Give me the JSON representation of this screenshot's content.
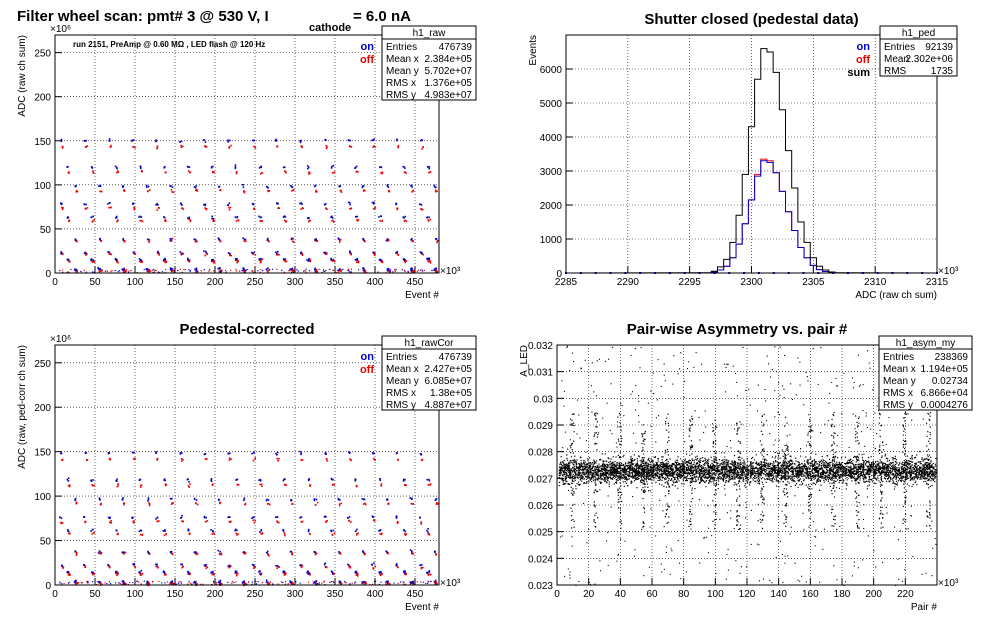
{
  "figure_title": {
    "prefix": "Filter wheel scan: pmt#   3 @   530 V, I",
    "subscript": "cathode",
    "suffix": "= 6.0 nA"
  },
  "chart_data": [
    {
      "id": "raw",
      "type": "scatter",
      "title": "",
      "xlabel": "Event #",
      "ylabel": "ADC (raw ch sum)",
      "xlim": [
        0,
        480
      ],
      "ylim": [
        0,
        270
      ],
      "x_exponent": "×10³",
      "y_exponent": "×10⁶",
      "xticks": [
        0,
        50,
        100,
        150,
        200,
        250,
        300,
        350,
        400,
        450
      ],
      "yticks": [
        0,
        50,
        100,
        150,
        200,
        250
      ],
      "grid": true,
      "annotation": "run 2151, PreAmp @ 0.60 MΩ , LED flash @  120 Hz",
      "legend": [
        {
          "label": "on",
          "color": "#0000cc"
        },
        {
          "label": "off",
          "color": "#ee0000"
        }
      ],
      "legend_position": "top-right",
      "stats": {
        "name": "h1_raw",
        "rows": [
          {
            "label": "Entries",
            "value": "476739"
          },
          {
            "label": "Mean x",
            "value": "2.384e+05"
          },
          {
            "label": "Mean y",
            "value": "5.702e+07"
          },
          {
            "label": "RMS x",
            "value": "1.376e+05"
          },
          {
            "label": "RMS y",
            "value": "4.983e+07"
          }
        ]
      },
      "bands": [
        {
          "on": 150,
          "off": 143
        },
        {
          "on": 120,
          "off": 114
        },
        {
          "on": 98,
          "off": 93
        },
        {
          "on": 78,
          "off": 73
        },
        {
          "on": 63,
          "off": 59
        },
        {
          "on": 38,
          "off": 36
        },
        {
          "on": 23,
          "off": 21
        },
        {
          "on": 15,
          "off": 13
        },
        {
          "on": 4,
          "off": 2
        }
      ],
      "scan_period": 30
    },
    {
      "id": "ped",
      "type": "line",
      "title": "Shutter closed (pedestal data)",
      "xlabel": "ADC (raw ch sum)",
      "ylabel": "Events",
      "xlim": [
        2285,
        2315
      ],
      "ylim": [
        0,
        7000
      ],
      "x_exponent": "×10³",
      "xticks": [
        2285,
        2290,
        2295,
        2300,
        2305,
        2310,
        2315
      ],
      "yticks": [
        0,
        1000,
        2000,
        3000,
        4000,
        5000,
        6000
      ],
      "grid": true,
      "legend": [
        {
          "label": "on",
          "color": "#0000cc"
        },
        {
          "label": "off",
          "color": "#ee0000"
        },
        {
          "label": "sum",
          "color": "#000000"
        }
      ],
      "legend_position": "top-right",
      "stats": {
        "name": "h1_ped",
        "rows": [
          {
            "label": "Entries",
            "value": "92139"
          },
          {
            "label": "Mean",
            "value": "2.302e+06"
          },
          {
            "label": "RMS",
            "value": "1735"
          }
        ]
      },
      "x": [
        2296.5,
        2297,
        2297.5,
        2298,
        2298.5,
        2299,
        2299.5,
        2300,
        2300.5,
        2301,
        2301.5,
        2302,
        2302.5,
        2303,
        2303.5,
        2304,
        2304.5,
        2305,
        2305.5,
        2306,
        2306.5,
        2307
      ],
      "series": [
        {
          "name": "sum",
          "values": [
            5,
            50,
            180,
            400,
            900,
            1700,
            2900,
            4300,
            5700,
            6600,
            6500,
            5900,
            4800,
            3600,
            2500,
            1500,
            900,
            450,
            200,
            90,
            30,
            5
          ]
        },
        {
          "name": "on",
          "values": [
            2,
            25,
            90,
            200,
            450,
            850,
            1450,
            2150,
            2850,
            3300,
            3250,
            2950,
            2400,
            1800,
            1250,
            750,
            450,
            225,
            100,
            45,
            15,
            2
          ]
        },
        {
          "name": "off",
          "values": [
            3,
            25,
            90,
            200,
            450,
            850,
            1450,
            2150,
            2900,
            3350,
            3300,
            2950,
            2400,
            1800,
            1250,
            750,
            450,
            225,
            100,
            45,
            15,
            3
          ]
        }
      ]
    },
    {
      "id": "rawCor",
      "type": "scatter",
      "title": "Pedestal-corrected",
      "xlabel": "Event #",
      "ylabel": "ADC (raw, ped-corr ch sum)",
      "xlim": [
        0,
        480
      ],
      "ylim": [
        0,
        270
      ],
      "x_exponent": "×10³",
      "y_exponent": "×10⁶",
      "xticks": [
        0,
        50,
        100,
        150,
        200,
        250,
        300,
        350,
        400,
        450
      ],
      "yticks": [
        0,
        50,
        100,
        150,
        200,
        250
      ],
      "grid": true,
      "legend": [
        {
          "label": "on",
          "color": "#0000cc"
        },
        {
          "label": "off",
          "color": "#ee0000"
        }
      ],
      "legend_position": "top-right",
      "stats": {
        "name": "h1_rawCor",
        "rows": [
          {
            "label": "Entries",
            "value": "476739"
          },
          {
            "label": "Mean x",
            "value": "2.427e+05"
          },
          {
            "label": "Mean y",
            "value": "6.085e+07"
          },
          {
            "label": "RMS x",
            "value": "1.38e+05"
          },
          {
            "label": "RMS y",
            "value": "4.887e+07"
          }
        ]
      },
      "bands": [
        {
          "on": 148,
          "off": 141
        },
        {
          "on": 118,
          "off": 112
        },
        {
          "on": 96,
          "off": 91
        },
        {
          "on": 76,
          "off": 71
        },
        {
          "on": 61,
          "off": 57
        },
        {
          "on": 37,
          "off": 35
        },
        {
          "on": 22,
          "off": 20
        },
        {
          "on": 14,
          "off": 12
        },
        {
          "on": 3,
          "off": 1
        }
      ],
      "scan_period": 30
    },
    {
      "id": "asym",
      "type": "scatter",
      "title": "Pair-wise Asymmetry vs. pair #",
      "xlabel": "Pair #",
      "ylabel": "A_LED",
      "xlim": [
        0,
        240
      ],
      "ylim": [
        0.023,
        0.032
      ],
      "x_exponent": "×10³",
      "xticks": [
        0,
        20,
        40,
        60,
        80,
        100,
        120,
        140,
        160,
        180,
        200,
        220
      ],
      "yticks": [
        0.023,
        0.024,
        0.025,
        0.026,
        0.027,
        0.028,
        0.029,
        0.03,
        0.031,
        0.032
      ],
      "grid": true,
      "stats": {
        "name": "h1_asym_my",
        "rows": [
          {
            "label": "Entries",
            "value": "238369"
          },
          {
            "label": "Mean x",
            "value": "1.194e+05"
          },
          {
            "label": "Mean y",
            "value": "0.02734"
          },
          {
            "label": "RMS x",
            "value": "6.866e+04"
          },
          {
            "label": "RMS y",
            "value": "0.0004276"
          }
        ]
      },
      "band_center": 0.0273,
      "band_halfwidth": 0.0004,
      "spike_period": 15
    }
  ]
}
